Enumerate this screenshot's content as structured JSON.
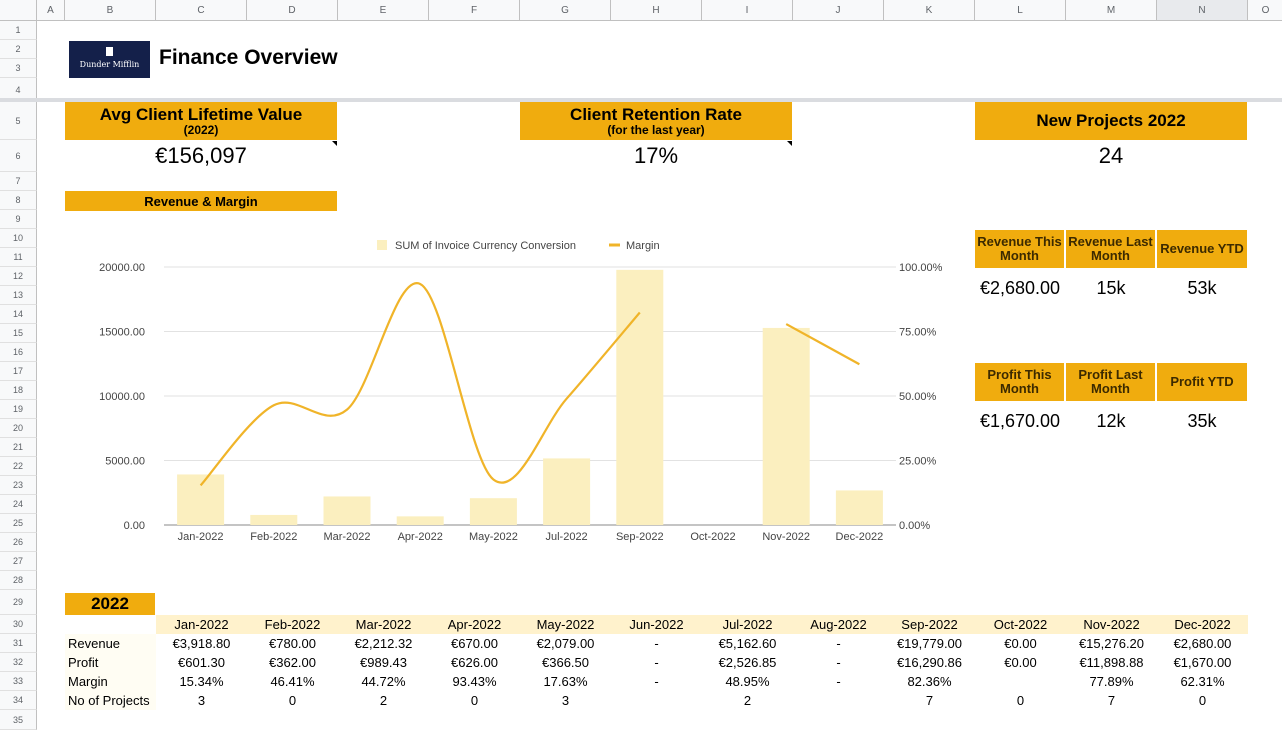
{
  "sheet": {
    "columns": [
      "A",
      "B",
      "C",
      "D",
      "E",
      "F",
      "G",
      "H",
      "I",
      "J",
      "K",
      "L",
      "M",
      "N",
      "O"
    ],
    "rows": [
      "1",
      "2",
      "3",
      "4",
      "5",
      "6",
      "7",
      "8",
      "9",
      "10",
      "11",
      "12",
      "13",
      "14",
      "15",
      "16",
      "17",
      "18",
      "19",
      "20",
      "21",
      "22",
      "23",
      "24",
      "25",
      "26",
      "27",
      "28",
      "29",
      "30",
      "31",
      "32",
      "33",
      "34",
      "35"
    ]
  },
  "header": {
    "logo_text": "Dunder Mifflin",
    "title": "Finance Overview"
  },
  "kpis": {
    "clv": {
      "title": "Avg Client Lifetime Value",
      "sub": "(2022)",
      "value": "€156,097"
    },
    "retention": {
      "title": "Client Retention Rate",
      "sub": "(for the last year)",
      "value": "17%"
    },
    "projects": {
      "title": "New Projects 2022",
      "value": "24"
    }
  },
  "revenue_section": {
    "title": "Revenue & Margin"
  },
  "revenue_boxes": {
    "this_month": {
      "label": "Revenue This Month",
      "value": "€2,680.00"
    },
    "last_month": {
      "label": "Revenue Last Month",
      "value": "15k"
    },
    "ytd": {
      "label": "Revenue YTD",
      "value": "53k"
    }
  },
  "profit_boxes": {
    "this_month": {
      "label": "Profit This Month",
      "value": "€1,670.00"
    },
    "last_month": {
      "label": "Profit Last Month",
      "value": "12k"
    },
    "ytd": {
      "label": "Profit YTD",
      "value": "35k"
    }
  },
  "chart_data": {
    "type": "bar",
    "categories": [
      "Jan-2022",
      "Feb-2022",
      "Mar-2022",
      "Apr-2022",
      "May-2022",
      "Jul-2022",
      "Sep-2022",
      "Oct-2022",
      "Nov-2022",
      "Dec-2022"
    ],
    "series": [
      {
        "name": "SUM of Invoice Currency Conversion",
        "type": "bar",
        "axis": "left",
        "values": [
          3918.8,
          780,
          2212.32,
          670,
          2079,
          5162.6,
          19779,
          0,
          15276.2,
          2680
        ]
      },
      {
        "name": "Margin",
        "type": "line",
        "axis": "right",
        "values": [
          15.34,
          46.41,
          44.72,
          93.43,
          17.63,
          48.95,
          82.36,
          null,
          77.89,
          62.31
        ]
      }
    ],
    "left_ticks": [
      "0.00",
      "5000.00",
      "10000.00",
      "15000.00",
      "20000.00"
    ],
    "right_ticks": [
      "0.00%",
      "25.00%",
      "50.00%",
      "75.00%",
      "100.00%"
    ],
    "ylim": [
      0,
      20000
    ],
    "y2lim": [
      0,
      100
    ],
    "legend": "top",
    "grid": true,
    "colors": {
      "bar": "#fbefbf",
      "line": "#f0b429"
    }
  },
  "table": {
    "year": "2022",
    "months": [
      "Jan-2022",
      "Feb-2022",
      "Mar-2022",
      "Apr-2022",
      "May-2022",
      "Jun-2022",
      "Jul-2022",
      "Aug-2022",
      "Sep-2022",
      "Oct-2022",
      "Nov-2022",
      "Dec-2022"
    ],
    "rows": [
      {
        "label": "Revenue",
        "values": [
          "€3,918.80",
          "€780.00",
          "€2,212.32",
          "€670.00",
          "€2,079.00",
          "-",
          "€5,162.60",
          "-",
          "€19,779.00",
          "€0.00",
          "€15,276.20",
          "€2,680.00"
        ]
      },
      {
        "label": "Profit",
        "values": [
          "€601.30",
          "€362.00",
          "€989.43",
          "€626.00",
          "€366.50",
          "-",
          "€2,526.85",
          "-",
          "€16,290.86",
          "€0.00",
          "€11,898.88",
          "€1,670.00"
        ]
      },
      {
        "label": "Margin",
        "values": [
          "15.34%",
          "46.41%",
          "44.72%",
          "93.43%",
          "17.63%",
          "-",
          "48.95%",
          "-",
          "82.36%",
          "",
          "77.89%",
          "62.31%"
        ]
      },
      {
        "label": "No of Projects",
        "values": [
          "3",
          "0",
          "2",
          "0",
          "3",
          "",
          "2",
          "",
          "7",
          "0",
          "7",
          "0"
        ]
      }
    ]
  },
  "colors": {
    "accent": "#f0ac0e",
    "light": "#fff2cc",
    "logo_bg": "#14204a"
  }
}
